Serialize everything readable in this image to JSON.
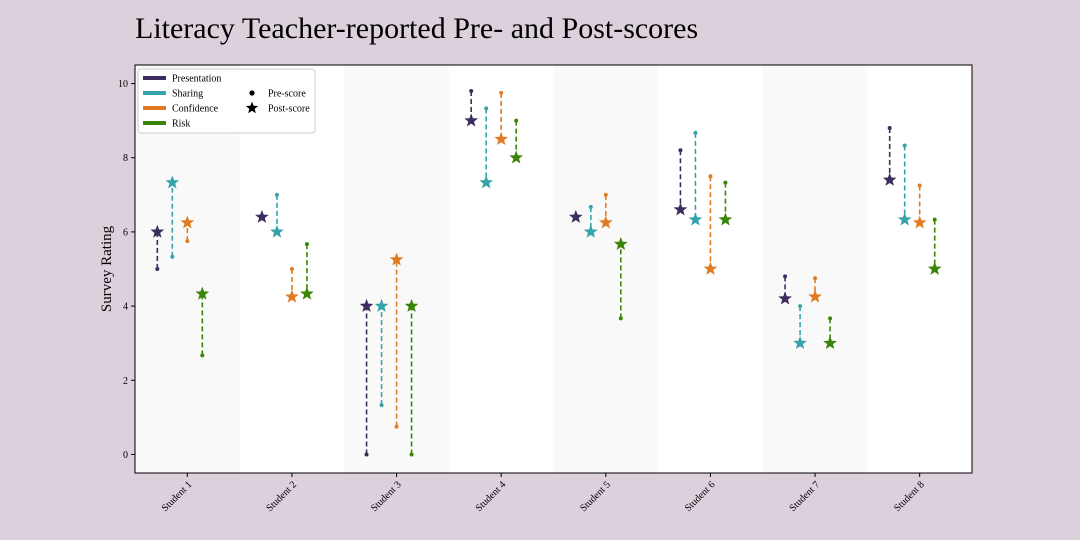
{
  "chart_data": {
    "type": "scatter",
    "title": "Literacy Teacher-reported Pre- and Post-scores",
    "xlabel": "",
    "ylabel": "Survey Rating",
    "ylim": [
      -0.5,
      10.5
    ],
    "yticks": [
      0,
      2,
      4,
      6,
      8,
      10
    ],
    "grid": false,
    "alternating_band_color": "#f9f9f9",
    "legend_position": "top-left",
    "categories": [
      "Student 1",
      "Student 2",
      "Student 3",
      "Student 4",
      "Student 5",
      "Student 6",
      "Student 7",
      "Student 8"
    ],
    "series": [
      {
        "name": "Presentation",
        "color": "#3d2c5e",
        "pre": [
          5.0,
          6.4,
          0.0,
          9.8,
          6.4,
          8.2,
          4.8,
          8.8
        ],
        "post": [
          6.0,
          6.4,
          4.0,
          9.0,
          6.4,
          6.6,
          4.2,
          7.4
        ]
      },
      {
        "name": "Sharing",
        "color": "#36a3aa",
        "pre": [
          5.33,
          7.0,
          1.33,
          9.33,
          6.67,
          8.67,
          4.0,
          8.33
        ],
        "post": [
          7.33,
          6.0,
          4.0,
          7.33,
          6.0,
          6.33,
          3.0,
          6.33
        ]
      },
      {
        "name": "Confidence",
        "color": "#e17b23",
        "pre": [
          5.75,
          5.0,
          0.75,
          9.75,
          7.0,
          7.5,
          4.75,
          7.25
        ],
        "post": [
          6.25,
          4.25,
          5.25,
          8.5,
          6.25,
          5.0,
          4.25,
          6.25
        ]
      },
      {
        "name": "Risk",
        "color": "#3a8408",
        "pre": [
          2.67,
          5.67,
          0.0,
          9.0,
          3.67,
          7.33,
          3.67,
          6.33
        ],
        "post": [
          4.33,
          4.33,
          4.0,
          8.0,
          5.67,
          6.33,
          3.0,
          5.0
        ]
      }
    ],
    "marker_legend": [
      {
        "label": "Pre-score",
        "marker": "dot"
      },
      {
        "label": "Post-score",
        "marker": "star"
      }
    ]
  }
}
